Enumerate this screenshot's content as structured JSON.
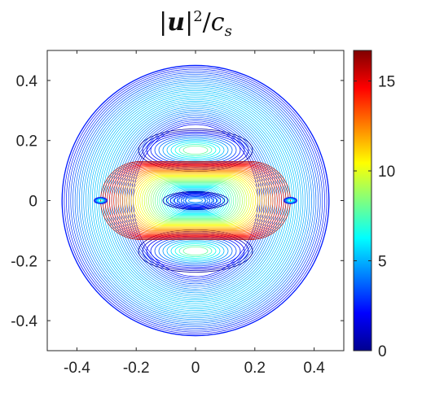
{
  "chart_data": {
    "type": "contour",
    "title": "|u|²/cₛ",
    "title_parts": {
      "lbar": "|",
      "var": "u",
      "rbar": "|",
      "exp": "2",
      "slash": "/",
      "c": "c",
      "sub": "s"
    },
    "xlim": [
      -0.5,
      0.5
    ],
    "ylim": [
      -0.5,
      0.5
    ],
    "x_ticks": [
      -0.4,
      -0.2,
      0,
      0.2,
      0.4
    ],
    "x_tick_labels": [
      "-0.4",
      "-0.2",
      "0",
      "0.2",
      "0.4"
    ],
    "y_ticks": [
      -0.4,
      -0.2,
      0,
      0.2,
      0.4
    ],
    "y_tick_labels": [
      "-0.4",
      "-0.2",
      "0",
      "0.2",
      "0.4"
    ],
    "colorbar": {
      "min": 0,
      "max": 16.7,
      "colormap": "jet",
      "ticks": [
        0,
        5,
        10,
        15
      ],
      "tick_labels": [
        "0",
        "5",
        "10",
        "15"
      ]
    },
    "outer_boundary_radius": 0.45,
    "inner_region": {
      "x_extent": [
        -0.32,
        0.32
      ],
      "y_extent": [
        -0.13,
        0.13
      ]
    },
    "grid": false,
    "legend": "none"
  }
}
